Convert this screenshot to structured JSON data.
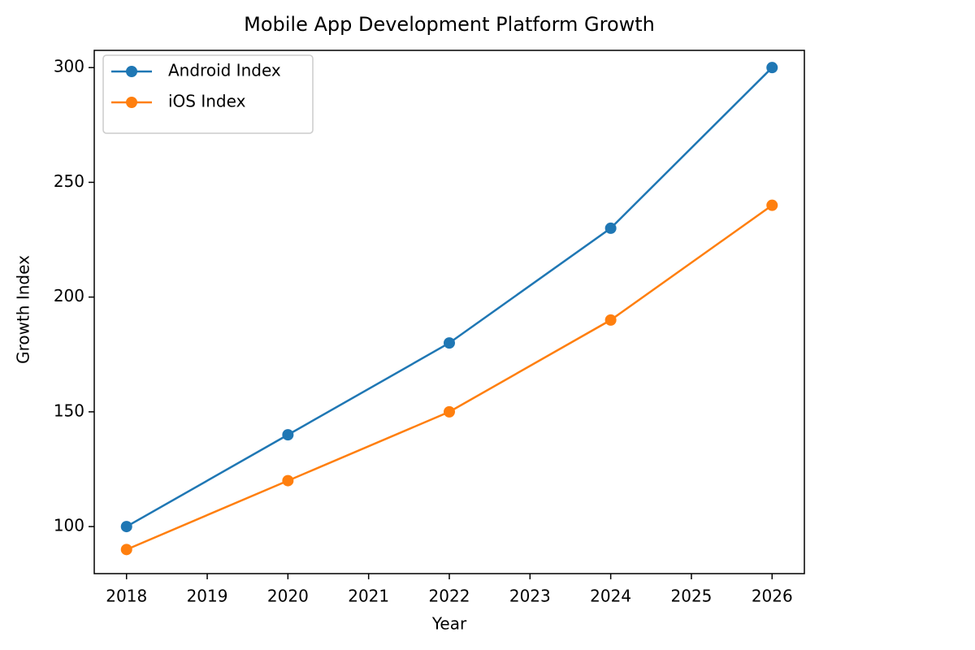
{
  "chart_data": {
    "type": "line",
    "title": "Mobile App Development Platform Growth",
    "x_label": "Year",
    "y_label": "Growth Index",
    "x": [
      2018,
      2020,
      2022,
      2024,
      2026
    ],
    "series": [
      {
        "name": "Android Index",
        "color": "#1f77b4",
        "values": [
          100,
          140,
          180,
          230,
          300
        ]
      },
      {
        "name": "iOS Index",
        "color": "#ff7f0e",
        "values": [
          90,
          120,
          150,
          190,
          240
        ]
      }
    ],
    "xlim": [
      2017.6,
      2026.4
    ],
    "xticks": [
      2018,
      2019,
      2020,
      2021,
      2022,
      2023,
      2024,
      2025,
      2026
    ],
    "ylim": [
      79.5,
      307.5
    ],
    "yticks": [
      100,
      150,
      200,
      250,
      300
    ],
    "grid": false,
    "legend": "upper left"
  }
}
